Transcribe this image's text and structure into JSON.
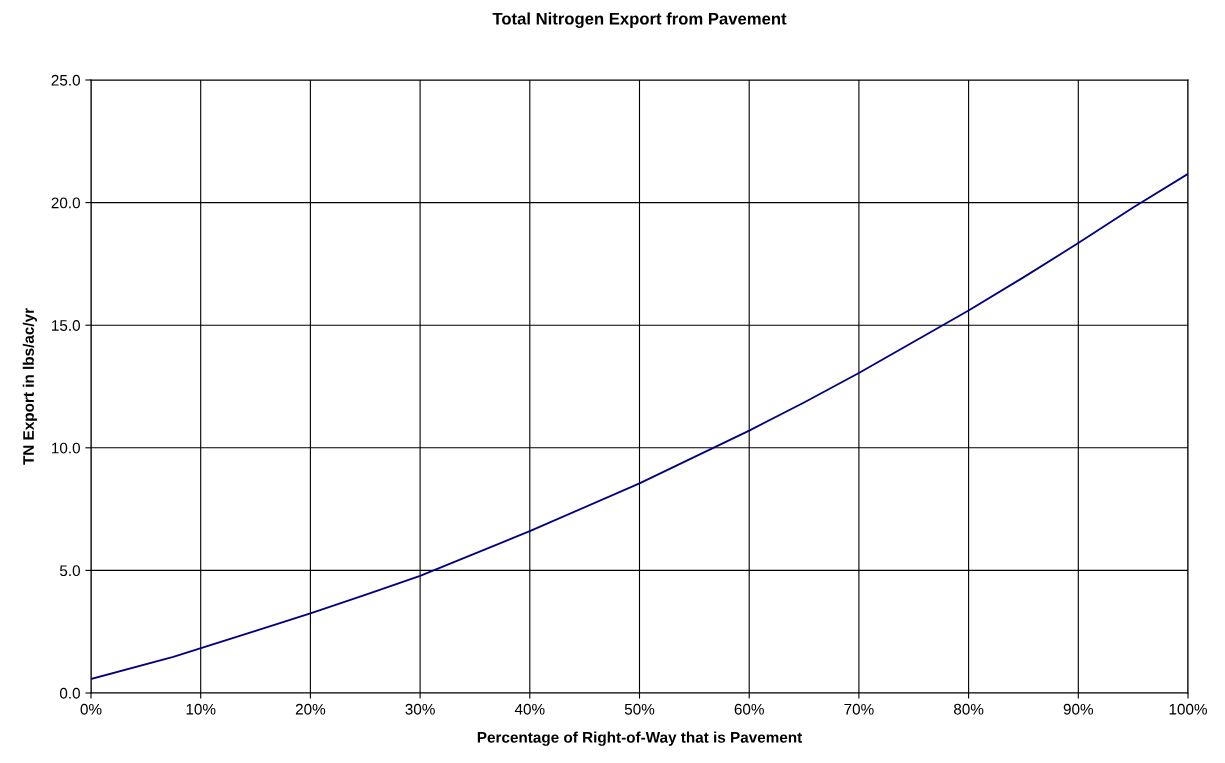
{
  "chart_data": {
    "type": "line",
    "title": "Total Nitrogen Export from Pavement",
    "xlabel": "Percentage of Right-of-Way that is Pavement",
    "ylabel": "TN Export in lbs/ac/yr",
    "x": [
      0,
      7.5,
      15,
      20,
      25,
      30,
      40,
      50,
      60,
      65,
      70,
      80,
      85,
      90,
      95,
      100
    ],
    "series": [
      {
        "color": "#000080",
        "values": [
          0.57,
          1.47,
          2.53,
          3.25,
          4.0,
          4.78,
          6.6,
          8.55,
          10.7,
          11.85,
          13.05,
          15.6,
          16.95,
          18.35,
          19.8,
          21.17
        ]
      }
    ],
    "xlim": [
      0,
      100
    ],
    "xticks": [
      {
        "value": 0,
        "label": "0%"
      },
      {
        "value": 10,
        "label": "10%"
      },
      {
        "value": 20,
        "label": "20%"
      },
      {
        "value": 30,
        "label": "30%"
      },
      {
        "value": 40,
        "label": "40%"
      },
      {
        "value": 50,
        "label": "50%"
      },
      {
        "value": 60,
        "label": "60%"
      },
      {
        "value": 70,
        "label": "70%"
      },
      {
        "value": 80,
        "label": "80%"
      },
      {
        "value": 90,
        "label": "90%"
      },
      {
        "value": 100,
        "label": "100%"
      }
    ],
    "ylim": [
      0,
      25
    ],
    "yticks": [
      {
        "value": 0,
        "label": "0.0"
      },
      {
        "value": 5,
        "label": "5.0"
      },
      {
        "value": 10,
        "label": "10.0"
      },
      {
        "value": 15,
        "label": "15.0"
      },
      {
        "value": 20,
        "label": "20.0"
      },
      {
        "value": 25,
        "label": "25.0"
      }
    ],
    "grid": true,
    "legend": false,
    "marker": "none",
    "line_style": "solid"
  }
}
